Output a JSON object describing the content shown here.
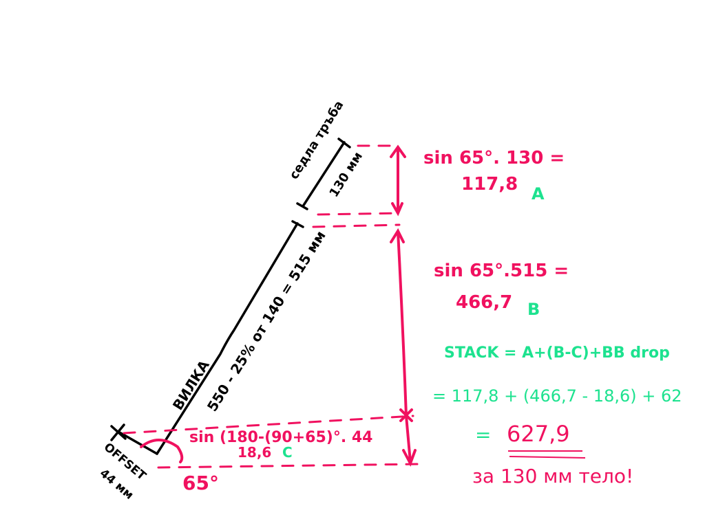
{
  "colors": {
    "ink": "#000000",
    "pink": "#f0115f",
    "green": "#1de28f"
  },
  "labels": {
    "seat_tube_name": "седла тръба",
    "seat_tube_length": "130 мм",
    "fork_name": "ВИЛКА",
    "fork_formula": "550 - 25% от 140 = 515 мм",
    "offset_name": "OFFSET",
    "offset_value": "44 мм",
    "head_angle": "65°"
  },
  "equations": {
    "a_formula": "sin 65°. 130 =",
    "a_result": "117,8",
    "a_tag": "A",
    "b_formula": "sin 65°.515 =",
    "b_result": "466,7",
    "b_tag": "B",
    "c_formula": "sin (180-(90+65)°. 44",
    "c_result": "18,6",
    "c_tag": "C",
    "stack_formula": "STACK = A+(B-C)+BB drop",
    "stack_substituted": "= 117,8 + (466,7 - 18,6) + 62",
    "stack_equals": "=",
    "stack_result": "627,9",
    "note": "за 130 мм тело!"
  }
}
